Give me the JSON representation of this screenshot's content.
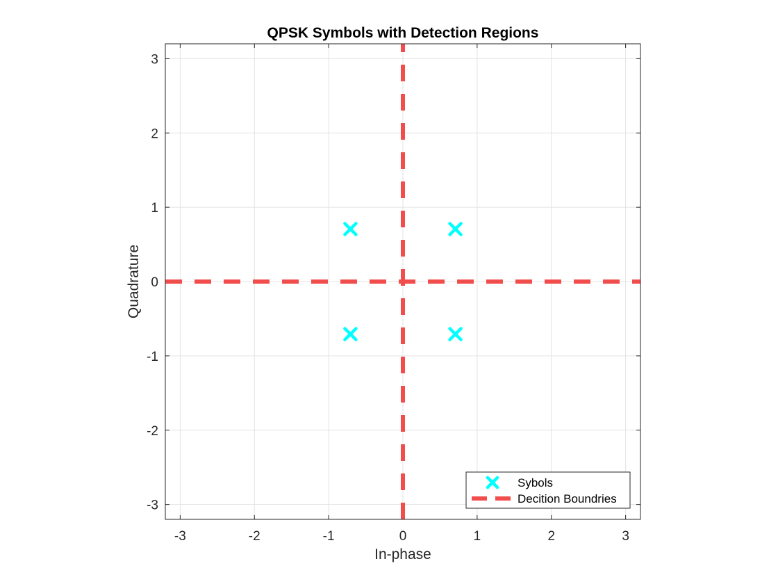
{
  "chart_data": {
    "type": "scatter",
    "title": "QPSK Symbols with Detection Regions",
    "xlabel": "In-phase",
    "ylabel": "Quadrature",
    "xlim": [
      -3.2,
      3.2
    ],
    "ylim": [
      -3.2,
      3.2
    ],
    "xticks": [
      -3,
      -2,
      -1,
      0,
      1,
      2,
      3
    ],
    "yticks": [
      -3,
      -2,
      -1,
      0,
      1,
      2,
      3
    ],
    "xtick_labels": [
      "-3",
      "-2",
      "-1",
      "0",
      "1",
      "2",
      "3"
    ],
    "ytick_labels": [
      "-3",
      "-2",
      "-1",
      "0",
      "1",
      "2",
      "3"
    ],
    "grid": true,
    "legend_position": "bottom-right",
    "series": [
      {
        "name": "Sybols",
        "kind": "marker",
        "marker": "x",
        "color": "#00FFFF",
        "x": [
          0.7071,
          -0.7071,
          -0.7071,
          0.7071
        ],
        "y": [
          0.7071,
          0.7071,
          -0.7071,
          -0.7071
        ]
      },
      {
        "name": "Decition Boundries",
        "kind": "dashed-line",
        "color": "#F14D4D",
        "lines": [
          {
            "x": [
              -3.2,
              3.2
            ],
            "y": [
              0,
              0
            ]
          },
          {
            "x": [
              0,
              0
            ],
            "y": [
              -3.2,
              3.2
            ]
          }
        ]
      }
    ]
  }
}
